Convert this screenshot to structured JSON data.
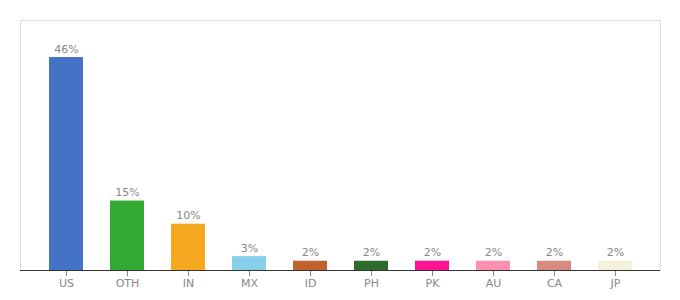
{
  "chart_data": {
    "type": "bar",
    "categories": [
      "US",
      "OTH",
      "IN",
      "MX",
      "ID",
      "PH",
      "PK",
      "AU",
      "CA",
      "JP"
    ],
    "values": [
      46,
      15,
      10,
      3,
      2,
      2,
      2,
      2,
      2,
      2
    ],
    "value_labels": [
      "46%",
      "15%",
      "10%",
      "3%",
      "2%",
      "2%",
      "2%",
      "2%",
      "2%",
      "2%"
    ],
    "colors": [
      "#4472c4",
      "#33aa33",
      "#f5a820",
      "#87ceeb",
      "#c0622c",
      "#2e6b2e",
      "#ff1493",
      "#ff8faf",
      "#d98a80",
      "#f5f0dc"
    ],
    "data_labels": true,
    "ylim": [
      0,
      54
    ],
    "tick_labels": "x",
    "grid": false
  }
}
